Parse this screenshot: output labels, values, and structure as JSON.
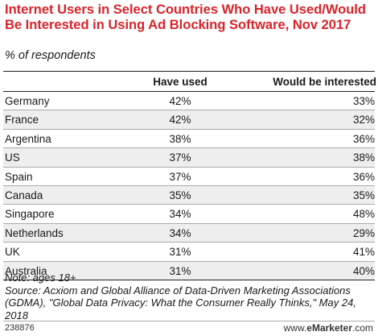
{
  "title": "Internet Users in Select Countries Who Have Used/Would Be Interested in Using Ad Blocking Software, Nov 2017",
  "subtitle": "% of respondents",
  "chart_data": {
    "type": "table",
    "columns": [
      "",
      "Have used",
      "Would be interested"
    ],
    "rows": [
      {
        "country": "Germany",
        "have_used": "42%",
        "would_be_interested": "33%"
      },
      {
        "country": "France",
        "have_used": "42%",
        "would_be_interested": "32%"
      },
      {
        "country": "Argentina",
        "have_used": "38%",
        "would_be_interested": "36%"
      },
      {
        "country": "US",
        "have_used": "37%",
        "would_be_interested": "38%"
      },
      {
        "country": "Spain",
        "have_used": "37%",
        "would_be_interested": "36%"
      },
      {
        "country": "Canada",
        "have_used": "35%",
        "would_be_interested": "35%"
      },
      {
        "country": "Singapore",
        "have_used": "34%",
        "would_be_interested": "48%"
      },
      {
        "country": "Netherlands",
        "have_used": "34%",
        "would_be_interested": "29%"
      },
      {
        "country": "UK",
        "have_used": "31%",
        "would_be_interested": "41%"
      },
      {
        "country": "Australia",
        "have_used": "31%",
        "would_be_interested": "40%"
      }
    ]
  },
  "note": "Note: ages 18+",
  "source": "Source: Acxiom and Global Alliance of Data-Driven Marketing Associations (GDMA), \"Global Data Privacy: What the Consumer Really Thinks,\" May 24, 2018",
  "footer": {
    "chart_id": "238876",
    "brand_prefix": "www.",
    "brand_name": "eMarketer",
    "brand_suffix": ".com"
  }
}
